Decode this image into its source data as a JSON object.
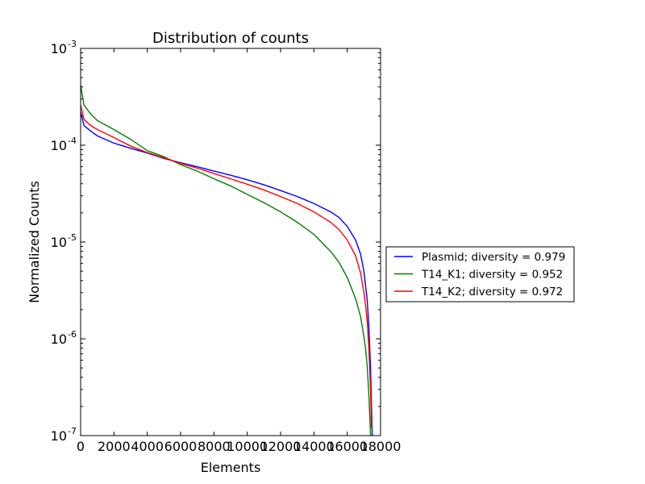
{
  "chart_data": {
    "type": "line",
    "title": "Distribution of counts",
    "xlabel": "Elements",
    "ylabel": "Normalized Counts",
    "xlim": [
      0,
      18000
    ],
    "ylim": [
      1e-07,
      0.001
    ],
    "yscale": "log",
    "grid": false,
    "legend_position": "right-outside",
    "x_ticks": [
      0,
      2000,
      4000,
      6000,
      8000,
      10000,
      12000,
      14000,
      16000,
      18000
    ],
    "x_tick_labels": [
      "0",
      "2000",
      "4000",
      "6000",
      "8000",
      "10000",
      "12000",
      "14000",
      "16000",
      "18000"
    ],
    "y_ticks": [
      {
        "value": 1e-07,
        "mantissa": "10",
        "exp": "-7"
      },
      {
        "value": 1e-06,
        "mantissa": "10",
        "exp": "-6"
      },
      {
        "value": 1e-05,
        "mantissa": "10",
        "exp": "-5"
      },
      {
        "value": 0.0001,
        "mantissa": "10",
        "exp": "-4"
      },
      {
        "value": 0.001,
        "mantissa": "10",
        "exp": "-3"
      }
    ],
    "series": [
      {
        "name": "Plasmid; diversity = 0.979",
        "color": "#0000ff",
        "x": [
          0,
          200,
          600,
          1000,
          2000,
          3000,
          4000,
          5000,
          6000,
          7000,
          8000,
          9000,
          10000,
          11000,
          12000,
          13000,
          14000,
          15000,
          15500,
          16000,
          16500,
          16800,
          17000,
          17200,
          17300,
          17400,
          17450,
          17500
        ],
        "y": [
          0.00022,
          0.00016,
          0.00014,
          0.000125,
          0.000105,
          9.3e-05,
          8.3e-05,
          7.3e-05,
          6.6e-05,
          6e-05,
          5.4e-05,
          4.9e-05,
          4.4e-05,
          3.9e-05,
          3.4e-05,
          2.95e-05,
          2.5e-05,
          2.05e-05,
          1.8e-05,
          1.45e-05,
          1.05e-05,
          7.5e-06,
          5e-06,
          2.5e-06,
          1.3e-06,
          5e-07,
          2.2e-07,
          1e-07
        ]
      },
      {
        "name": "T14_K1; diversity = 0.952",
        "color": "#008000",
        "x": [
          0,
          200,
          600,
          1000,
          2000,
          3000,
          4000,
          5000,
          6000,
          7000,
          8000,
          9000,
          10000,
          11000,
          12000,
          13000,
          14000,
          15000,
          15500,
          16000,
          16500,
          16800,
          17000,
          17100,
          17200,
          17300,
          17400
        ],
        "y": [
          0.00042,
          0.00026,
          0.00021,
          0.00018,
          0.000145,
          0.000115,
          8.8e-05,
          7.6e-05,
          6.3e-05,
          5.4e-05,
          4.5e-05,
          3.8e-05,
          3.1e-05,
          2.55e-05,
          2.05e-05,
          1.6e-05,
          1.2e-05,
          8e-06,
          6.2e-06,
          4.3e-06,
          2.6e-06,
          1.7e-06,
          1.05e-06,
          8e-07,
          5.2e-07,
          2.6e-07,
          1e-07
        ]
      },
      {
        "name": "T14_K2; diversity = 0.972",
        "color": "#ff0000",
        "x": [
          0,
          200,
          600,
          1000,
          2000,
          3000,
          4000,
          5000,
          6000,
          7000,
          8000,
          9000,
          10000,
          11000,
          12000,
          13000,
          14000,
          15000,
          15500,
          16000,
          16500,
          16800,
          17000,
          17100,
          17200,
          17300,
          17400,
          17450
        ],
        "y": [
          0.00026,
          0.000185,
          0.00016,
          0.000145,
          0.00012,
          9.8e-05,
          8.4e-05,
          7.4e-05,
          6.5e-05,
          5.8e-05,
          5.1e-05,
          4.5e-05,
          3.95e-05,
          3.45e-05,
          2.95e-05,
          2.5e-05,
          2.05e-05,
          1.6e-05,
          1.35e-05,
          1.05e-05,
          7.2e-06,
          4.8e-06,
          3e-06,
          2.2e-06,
          1.5e-06,
          8e-07,
          3e-07,
          1.2e-07
        ]
      }
    ]
  }
}
